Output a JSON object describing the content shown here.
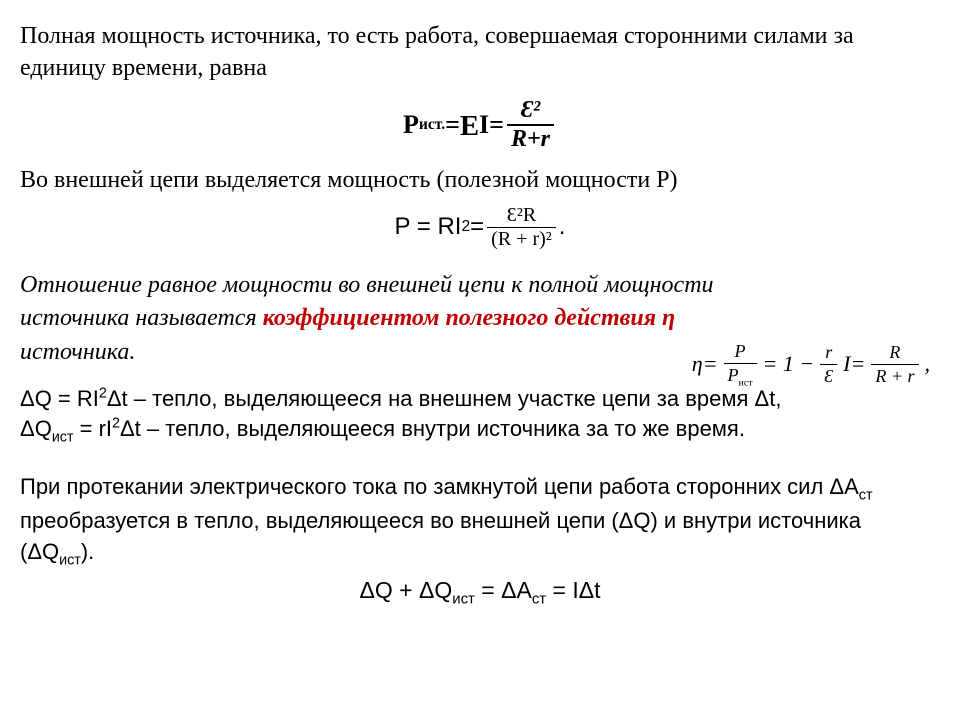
{
  "para1": "Полная мощность источника, то есть работа, совершаемая сторонними силами за единицу времени, равна",
  "eq1": {
    "lhs_P": "P",
    "lhs_sub": "ист.",
    "eq": " = ",
    "eps": "E",
    "I": "I",
    "eq2": " = ",
    "num": "Ɛ²",
    "den": "R+r"
  },
  "para2": "Во внешней цепи выделяется мощность (полезной мощности P)",
  "eq2f": {
    "lhs": "P = RI",
    "sup": "2",
    "eq": " = ",
    "num": "Ɛ²R",
    "den": "(R + r)²",
    "dot": "."
  },
  "ital": {
    "line1": "Отношение равное  мощности во внешней цепи  к полной мощности  источника называется ",
    "red": "коэффициентом полезного действия η",
    "tail": " источника."
  },
  "eta": {
    "eta": "η",
    "eq": " = ",
    "f1_num": "P",
    "f1_den_P": "P",
    "f1_den_sub": "ист",
    "mid": " = 1 − ",
    "f2_num": "r",
    "f2_den": "Ɛ",
    "I": "I",
    "eq2": " = ",
    "f3_num": "R",
    "f3_den": "R + r",
    "comma": ","
  },
  "heat1_a": "ΔQ = RI",
  "heat1_sup": "2",
  "heat1_b": "Δt – тепло, выделяющееся на внешнем участке цепи за время Δt,",
  "heat2_a": "ΔQ",
  "heat2_sub": "ист",
  "heat2_b": " = rI",
  "heat2_sup": "2",
  "heat2_c": "Δt – тепло, выделяющееся внутри источника за то же время.",
  "para3": "При протекании электрического тока по замкнутой цепи работа сторонних сил ΔA",
  "para3_sub": "ст",
  "para3_b": " преобразуется в тепло, выделяющееся во внешней цепи (ΔQ) и внутри источника (ΔQ",
  "para3_sub2": "ист",
  "para3_c": ").",
  "final": {
    "a": "ΔQ + ΔQ",
    "sub1": "ист",
    "b": " = ΔA",
    "sub2": "ст",
    "c": " =  IΔt"
  },
  "colors": {
    "text": "#000000",
    "red": "#c00000",
    "bg": "#ffffff"
  }
}
